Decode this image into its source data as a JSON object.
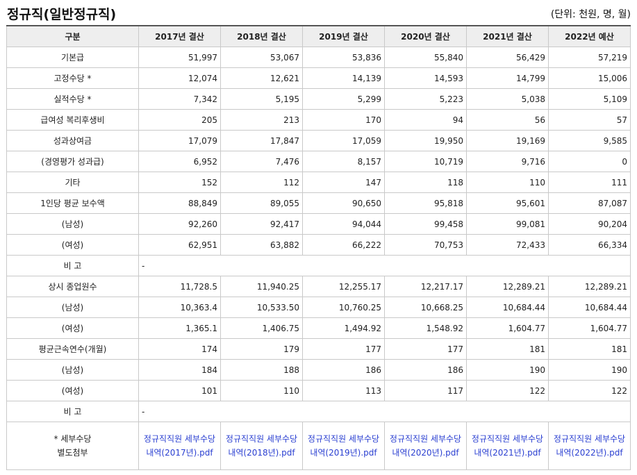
{
  "page": {
    "title": "정규직(일반정규직)",
    "unit": "(단위: 천원, 명, 월)"
  },
  "table": {
    "headers": [
      "구분",
      "2017년 결산",
      "2018년 결산",
      "2019년 결산",
      "2020년 결산",
      "2021년 결산",
      "2022년 예산"
    ],
    "rows": [
      {
        "label": "기본급",
        "values": [
          "51,997",
          "53,067",
          "53,836",
          "55,840",
          "56,429",
          "57,219"
        ]
      },
      {
        "label": "고정수당 *",
        "values": [
          "12,074",
          "12,621",
          "14,139",
          "14,593",
          "14,799",
          "15,006"
        ]
      },
      {
        "label": "실적수당 *",
        "values": [
          "7,342",
          "5,195",
          "5,299",
          "5,223",
          "5,038",
          "5,109"
        ]
      },
      {
        "label": "급여성 복리후생비",
        "values": [
          "205",
          "213",
          "170",
          "94",
          "56",
          "57"
        ]
      },
      {
        "label": "성과상여금",
        "values": [
          "17,079",
          "17,847",
          "17,059",
          "19,950",
          "19,169",
          "9,585"
        ]
      },
      {
        "label": "(경영평가 성과급)",
        "values": [
          "6,952",
          "7,476",
          "8,157",
          "10,719",
          "9,716",
          "0"
        ]
      },
      {
        "label": "기타",
        "values": [
          "152",
          "112",
          "147",
          "118",
          "110",
          "111"
        ]
      },
      {
        "label": "1인당 평균 보수액",
        "values": [
          "88,849",
          "89,055",
          "90,650",
          "95,818",
          "95,601",
          "87,087"
        ]
      },
      {
        "label": "(남성)",
        "values": [
          "92,260",
          "92,417",
          "94,044",
          "99,458",
          "99,081",
          "90,204"
        ]
      },
      {
        "label": "(여성)",
        "values": [
          "62,951",
          "63,882",
          "66,222",
          "70,753",
          "72,433",
          "66,334"
        ]
      }
    ],
    "remark1": {
      "label": "비 고",
      "value": "-"
    },
    "rows2": [
      {
        "label": "상시 종업원수",
        "values": [
          "11,728.5",
          "11,940.25",
          "12,255.17",
          "12,217.17",
          "12,289.21",
          "12,289.21"
        ]
      },
      {
        "label": "(남성)",
        "values": [
          "10,363.4",
          "10,533.50",
          "10,760.25",
          "10,668.25",
          "10,684.44",
          "10,684.44"
        ]
      },
      {
        "label": "(여성)",
        "values": [
          "1,365.1",
          "1,406.75",
          "1,494.92",
          "1,548.92",
          "1,604.77",
          "1,604.77"
        ]
      },
      {
        "label": "평균근속연수(개월)",
        "values": [
          "174",
          "179",
          "177",
          "177",
          "181",
          "181"
        ]
      },
      {
        "label": "(남성)",
        "values": [
          "184",
          "188",
          "186",
          "186",
          "190",
          "190"
        ]
      },
      {
        "label": "(여성)",
        "values": [
          "101",
          "110",
          "113",
          "117",
          "122",
          "122"
        ]
      }
    ],
    "remark2": {
      "label": "비 고",
      "value": "-"
    },
    "attachments": {
      "label_line1": "* 세부수당",
      "label_line2": "별도첨부",
      "links": [
        "정규직직원 세부수당내역(2017년).pdf",
        "정규직직원 세부수당내역(2018년).pdf",
        "정규직직원 세부수당내역(2019년).pdf",
        "정규직직원 세부수당내역(2020년).pdf",
        "정규직직원 세부수당내역(2021년).pdf",
        "정규직직원 세부수당내역(2022년).pdf"
      ]
    }
  }
}
